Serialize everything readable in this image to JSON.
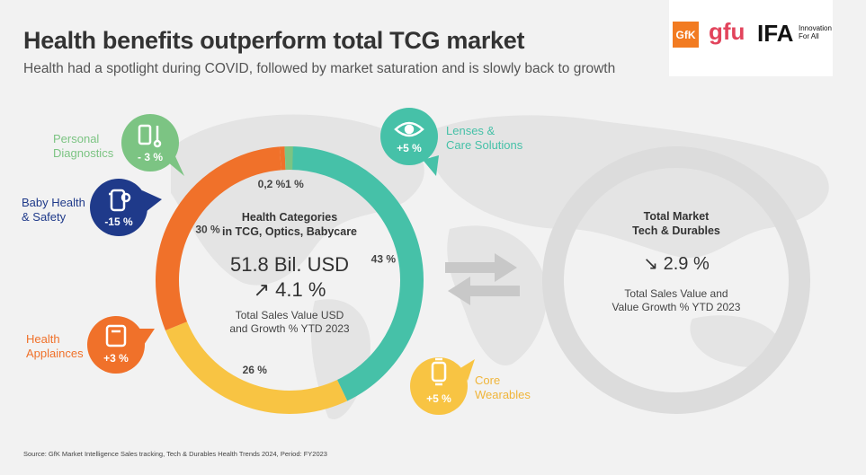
{
  "header": {
    "title": "Health benefits outperform total TCG market",
    "subtitle": "Health had a spotlight during COVID, followed by market saturation and is slowly back to growth"
  },
  "logos": {
    "gfk": "GfK",
    "gfu": "gfu",
    "ifa": "IFA",
    "ifa_tagline_1": "Innovation",
    "ifa_tagline_2": "For All"
  },
  "chart_data": [
    {
      "type": "pie",
      "title": "Health Categories in TCG, Optics, Babycare",
      "categories": [
        "Lenses & Care Solutions",
        "Core Wearables",
        "Health Applainces",
        "Baby Health & Safety",
        "Personal Diagnostics"
      ],
      "values": [
        43,
        26,
        30,
        0.2,
        1
      ],
      "value_labels": [
        "43 %",
        "26 %",
        "30 %",
        "0,2 %",
        "1 %"
      ],
      "growth_labels": [
        "+5 %",
        "+5 %",
        "+3 %",
        "-15 %",
        "- 3 %"
      ],
      "colors": [
        "#46c1a8",
        "#f8c443",
        "#f0712a",
        "#f0712a",
        "#7cc483"
      ],
      "center": {
        "heading_1": "Health Categories",
        "heading_2": "in TCG, Optics, Babycare",
        "value": "51.8 Bil. USD",
        "growth": "↗ 4.1 %",
        "caption_1": "Total Sales Value USD",
        "caption_2": "and Growth % YTD 2023"
      }
    },
    {
      "type": "pie",
      "title": "Total Market Tech & Durables",
      "categories": [
        "Total Market"
      ],
      "values": [
        100
      ],
      "colors": [
        "#dcdcdc"
      ],
      "center": {
        "heading_1": "Total Market",
        "heading_2": "Tech & Durables",
        "growth": "↘ 2.9 %",
        "caption_1": "Total Sales Value and",
        "caption_2": "Value Growth % YTD 2023"
      }
    }
  ],
  "categories": {
    "lenses": {
      "label_1": "Lenses &",
      "label_2": "Care Solutions",
      "growth": "+5 %",
      "color": "#46c1a8"
    },
    "wearables": {
      "label_1": "Core",
      "label_2": "Wearables",
      "growth": "+5 %",
      "color": "#f8c443"
    },
    "appliances": {
      "label_1": "Health",
      "label_2": "Applainces",
      "growth": "+3 %",
      "color": "#f0712a"
    },
    "baby": {
      "label_1": "Baby Health",
      "label_2": "& Safety",
      "growth": "-15 %",
      "color": "#1f3a8a"
    },
    "diagnostics": {
      "label_1": "Personal",
      "label_2": "Diagnostics",
      "growth": "- 3 %",
      "color": "#7cc483"
    }
  },
  "source": "Source: GfK Market Intelligence Sales tracking, Tech & Durables Health Trends 2024, Period: FY2023"
}
